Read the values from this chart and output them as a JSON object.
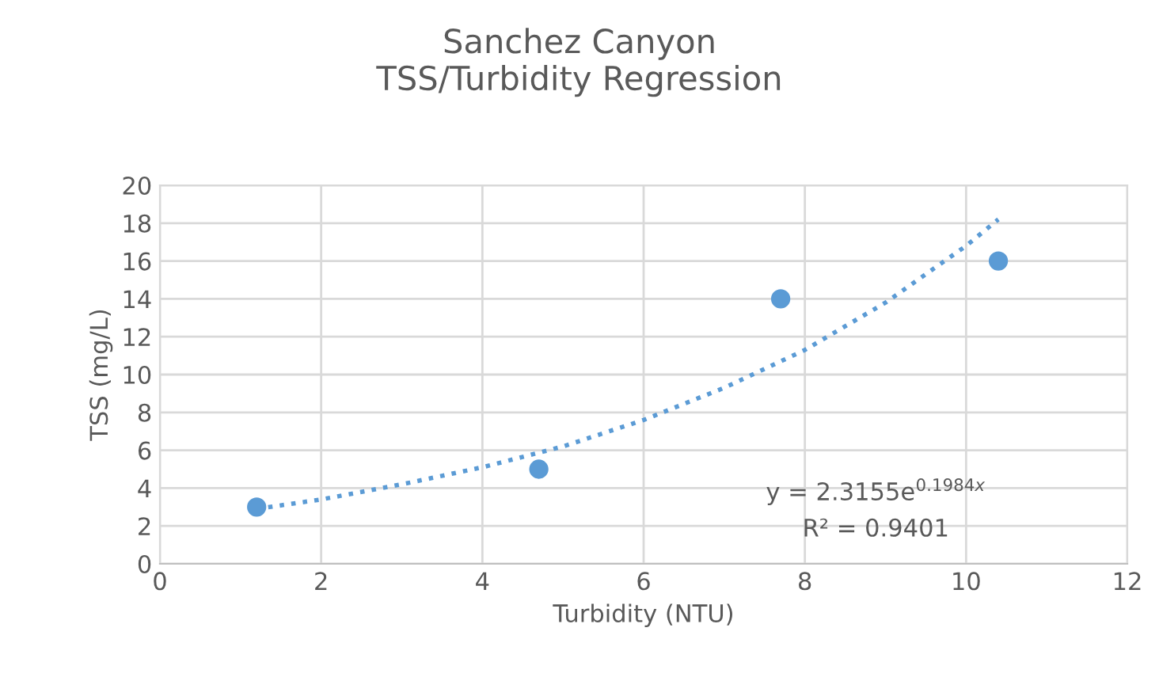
{
  "chart_data": {
    "type": "scatter",
    "title": "Sanchez Canyon\nTSS/Turbidity Regression",
    "xlabel": "Turbidity (NTU)",
    "ylabel": "TSS (mg/L)",
    "series": [
      {
        "color": "#5b9bd5",
        "marker": "circle",
        "x": [
          1.2,
          4.7,
          7.7,
          10.4
        ],
        "values": [
          3,
          5,
          14,
          16
        ]
      },
      {
        "type": "line",
        "color": "#5b9bd5",
        "marker": "none",
        "line_style": "dotted",
        "x": [
          1.2,
          2,
          3,
          4,
          5,
          6,
          7,
          8,
          9,
          10,
          10.4
        ],
        "values": [
          2.9,
          3.4,
          4.2,
          5.1,
          6.2,
          7.6,
          9.3,
          11.3,
          13.8,
          16.8,
          18.2
        ]
      }
    ],
    "xlim": [
      0,
      12
    ],
    "xticks": [
      0,
      2,
      4,
      6,
      8,
      10,
      12
    ],
    "ylim": [
      0,
      20
    ],
    "yticks": [
      0,
      2,
      4,
      6,
      8,
      10,
      12,
      14,
      16,
      18,
      20
    ],
    "grid": true,
    "legend": false,
    "annotations": [
      "y = 2.3155e$^{0.1984x}$",
      "R² = 0.9401"
    ]
  }
}
